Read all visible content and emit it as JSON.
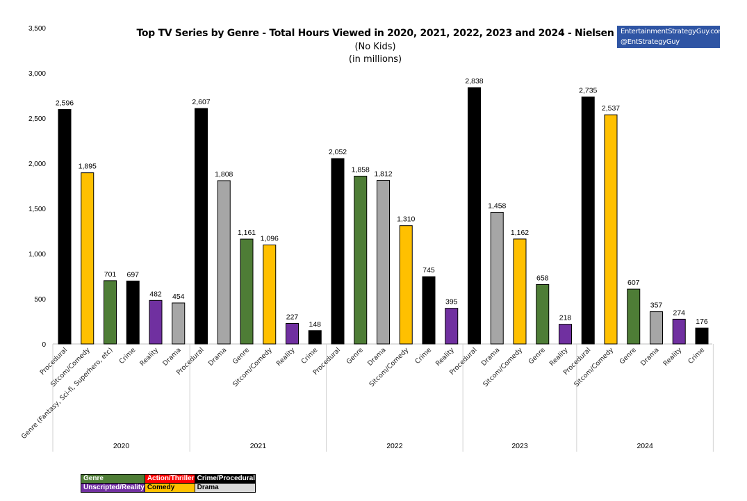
{
  "title": "Top TV Series by Genre - Total Hours Viewed in 2020,  2021, 2022, 2023 and 2024 - Nielsen",
  "subtitle": "(No Kids)",
  "subtitle2": "(in millions)",
  "brand": {
    "line1": "EntertainmentStrategyGuy.com",
    "line2": "@EntStrategyGuy"
  },
  "legend": {
    "genre": "Genre",
    "action": "Action/Thriller",
    "crime": "Crime/Procedural",
    "reality": "Unscripted/Reality",
    "comedy": "Comedy",
    "drama": "Drama"
  },
  "colors": {
    "procedural": "#000000",
    "comedy": "#ffc000",
    "genre": "#4e7d36",
    "reality": "#7030a0",
    "drama": "#a6a6a6"
  },
  "chart_data": {
    "type": "bar",
    "ylim": [
      0,
      3500
    ],
    "yticks": [
      "0",
      "500",
      "1,000",
      "1,500",
      "2,000",
      "2,500",
      "3,000",
      "3,500"
    ],
    "grid": false,
    "groups": [
      {
        "name": "2020",
        "bars": [
          {
            "label": "Procedural",
            "value": 2596,
            "value_label": "2,596",
            "kind": "procedural"
          },
          {
            "label": "Sitcom/Comedy",
            "value": 1895,
            "value_label": "1,895",
            "kind": "comedy"
          },
          {
            "label": "Genre (Fantasy, Sci-fi, Superhero, etc)",
            "value": 701,
            "value_label": "701",
            "kind": "genre"
          },
          {
            "label": "Crime",
            "value": 697,
            "value_label": "697",
            "kind": "procedural"
          },
          {
            "label": "Reality",
            "value": 482,
            "value_label": "482",
            "kind": "reality"
          },
          {
            "label": "Drama",
            "value": 454,
            "value_label": "454",
            "kind": "drama"
          }
        ]
      },
      {
        "name": "2021",
        "bars": [
          {
            "label": "Procedural",
            "value": 2607,
            "value_label": "2,607",
            "kind": "procedural"
          },
          {
            "label": "Drama",
            "value": 1808,
            "value_label": "1,808",
            "kind": "drama"
          },
          {
            "label": "Genre",
            "value": 1161,
            "value_label": "1,161",
            "kind": "genre"
          },
          {
            "label": "Sitcom/Comedy",
            "value": 1096,
            "value_label": "1,096",
            "kind": "comedy"
          },
          {
            "label": "Reality",
            "value": 227,
            "value_label": "227",
            "kind": "reality"
          },
          {
            "label": "Crime",
            "value": 148,
            "value_label": "148",
            "kind": "procedural"
          }
        ]
      },
      {
        "name": "2022",
        "bars": [
          {
            "label": "Procedural",
            "value": 2052,
            "value_label": "2,052",
            "kind": "procedural"
          },
          {
            "label": "Genre",
            "value": 1858,
            "value_label": "1,858",
            "kind": "genre"
          },
          {
            "label": "Drama",
            "value": 1812,
            "value_label": "1,812",
            "kind": "drama"
          },
          {
            "label": "Sitcom/Comedy",
            "value": 1310,
            "value_label": "1,310",
            "kind": "comedy"
          },
          {
            "label": "Crime",
            "value": 745,
            "value_label": "745",
            "kind": "procedural"
          },
          {
            "label": "Reality",
            "value": 395,
            "value_label": "395",
            "kind": "reality"
          }
        ]
      },
      {
        "name": "2023",
        "bars": [
          {
            "label": "Procedural",
            "value": 2838,
            "value_label": "2,838",
            "kind": "procedural"
          },
          {
            "label": "Drama",
            "value": 1458,
            "value_label": "1,458",
            "kind": "drama"
          },
          {
            "label": "Sitcom/Comedy",
            "value": 1162,
            "value_label": "1,162",
            "kind": "comedy"
          },
          {
            "label": "Genre",
            "value": 658,
            "value_label": "658",
            "kind": "genre"
          },
          {
            "label": "Reality",
            "value": 218,
            "value_label": "218",
            "kind": "reality"
          }
        ]
      },
      {
        "name": "2024",
        "bars": [
          {
            "label": "Procedural",
            "value": 2735,
            "value_label": "2,735",
            "kind": "procedural"
          },
          {
            "label": "Sitcom/Comedy",
            "value": 2537,
            "value_label": "2,537",
            "kind": "comedy"
          },
          {
            "label": "Genre",
            "value": 607,
            "value_label": "607",
            "kind": "genre"
          },
          {
            "label": "Drama",
            "value": 357,
            "value_label": "357",
            "kind": "drama"
          },
          {
            "label": "Reality",
            "value": 274,
            "value_label": "274",
            "kind": "reality"
          },
          {
            "label": "Crime",
            "value": 176,
            "value_label": "176",
            "kind": "procedural"
          }
        ]
      }
    ]
  }
}
